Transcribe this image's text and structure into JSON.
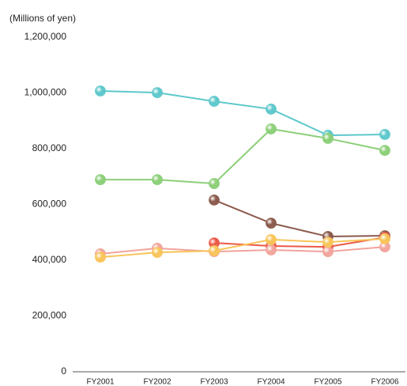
{
  "chart_data": {
    "type": "line",
    "y_label": "(Millions of yen)",
    "categories": [
      "FY2001",
      "FY2002",
      "FY2003",
      "FY2004",
      "FY2005",
      "FY2006"
    ],
    "series": [
      {
        "color": "#5ec8cc",
        "values": [
          1007000,
          1001000,
          970000,
          942000,
          848000,
          851000
        ]
      },
      {
        "color": "#8ccf78",
        "values": [
          689000,
          689000,
          675000,
          871000,
          837000,
          794000
        ]
      },
      {
        "color": "#8b5a4c",
        "values": [
          null,
          null,
          616000,
          533000,
          485000,
          488000
        ]
      },
      {
        "color": "#ec5a48",
        "values": [
          null,
          null,
          462000,
          451000,
          448000,
          482000
        ]
      },
      {
        "color": "#f1a49c",
        "values": [
          423000,
          443000,
          431000,
          437000,
          431000,
          448000
        ]
      },
      {
        "color": "#f8c55a",
        "values": [
          411000,
          428000,
          434000,
          474000,
          465000,
          477000
        ]
      }
    ],
    "ylim": [
      0,
      1200000
    ],
    "yticks": [
      0,
      {
        "value": 200000,
        "label": "200,000"
      },
      {
        "value": 400000,
        "label": "400,000"
      },
      {
        "value": 600000,
        "label": "600,000"
      },
      {
        "value": 800000,
        "label": "800,000"
      },
      {
        "value": 1000000,
        "label": "1,000,000"
      },
      {
        "value": 1200000,
        "label": "1,200,000"
      }
    ],
    "grid": false
  }
}
